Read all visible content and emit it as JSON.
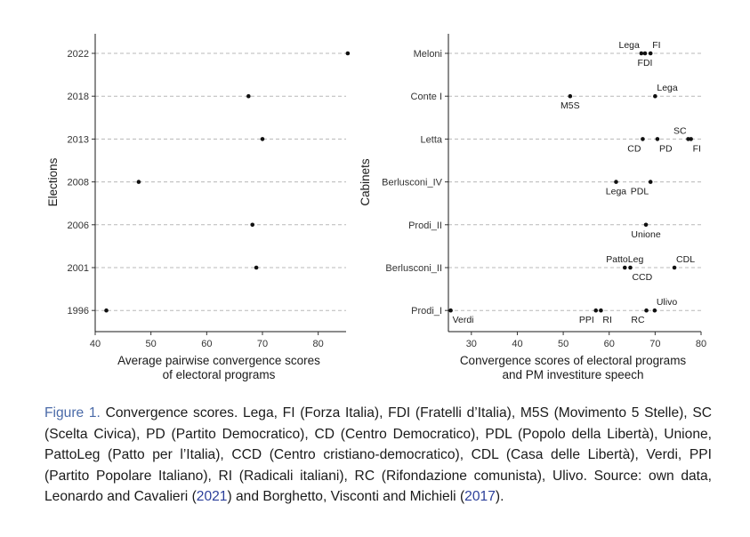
{
  "chart_data": [
    {
      "type": "scatter",
      "panel": "left",
      "ylabel": "Elections",
      "xlabel_lines": [
        "Average pairwise convergence scores",
        "of electoral programs"
      ],
      "categories": [
        "2022",
        "2018",
        "2013",
        "2008",
        "2006",
        "2001",
        "1996"
      ],
      "xlim": [
        40,
        85
      ],
      "xticks": [
        40,
        50,
        60,
        70,
        80
      ],
      "points": [
        {
          "category": "2022",
          "x": 85.3
        },
        {
          "category": "2018",
          "x": 67.5
        },
        {
          "category": "2013",
          "x": 70.0
        },
        {
          "category": "2008",
          "x": 47.8
        },
        {
          "category": "2006",
          "x": 68.2
        },
        {
          "category": "2001",
          "x": 68.9
        },
        {
          "category": "1996",
          "x": 42.0
        }
      ],
      "grid": "horizontal dashed"
    },
    {
      "type": "scatter",
      "panel": "right",
      "ylabel": "Cabinets",
      "xlabel_lines": [
        "Convergence scores of electoral programs",
        "and PM investiture speech"
      ],
      "categories": [
        "Meloni",
        "Conte I",
        "Letta",
        "Berlusconi_IV",
        "Prodi_II",
        "Berlusconi_II",
        "Prodi_I"
      ],
      "xlim": [
        25,
        80
      ],
      "xticks": [
        30,
        40,
        50,
        60,
        70,
        80
      ],
      "points": [
        {
          "category": "Meloni",
          "x": 67.0,
          "label": "Lega",
          "label_pos": "above-left"
        },
        {
          "category": "Meloni",
          "x": 69.0,
          "label": "FI",
          "label_pos": "above-right"
        },
        {
          "category": "Meloni",
          "x": 67.8,
          "label": "FDI",
          "label_pos": "below"
        },
        {
          "category": "Conte I",
          "x": 51.5,
          "label": "M5S",
          "label_pos": "below"
        },
        {
          "category": "Conte I",
          "x": 70.0,
          "label": "Lega",
          "label_pos": "above-right"
        },
        {
          "category": "Letta",
          "x": 67.3,
          "label": "CD",
          "label_pos": "below-left"
        },
        {
          "category": "Letta",
          "x": 70.5,
          "label": "PD",
          "label_pos": "below-right"
        },
        {
          "category": "Letta",
          "x": 77.2,
          "label": "SC",
          "label_pos": "above-left"
        },
        {
          "category": "Letta",
          "x": 77.8,
          "label": "FI",
          "label_pos": "below-right"
        },
        {
          "category": "Berlusconi_IV",
          "x": 61.5,
          "label": "Lega",
          "label_pos": "below"
        },
        {
          "category": "Berlusconi_IV",
          "x": 69.0,
          "label": "PDL",
          "label_pos": "below-left"
        },
        {
          "category": "Prodi_II",
          "x": 68.0,
          "label": "Unione",
          "label_pos": "below"
        },
        {
          "category": "Berlusconi_II",
          "x": 63.4,
          "label": "PattoLeg",
          "label_pos": "above"
        },
        {
          "category": "Berlusconi_II",
          "x": 64.6,
          "label": "CCD",
          "label_pos": "below-right"
        },
        {
          "category": "Berlusconi_II",
          "x": 74.2,
          "label": "CDL",
          "label_pos": "above-right"
        },
        {
          "category": "Prodi_I",
          "x": 25.5,
          "label": "Verdi",
          "label_pos": "below-right"
        },
        {
          "category": "Prodi_I",
          "x": 57.1,
          "label": "PPI",
          "label_pos": "below-left"
        },
        {
          "category": "Prodi_I",
          "x": 58.2,
          "label": "RI",
          "label_pos": "below-right"
        },
        {
          "category": "Prodi_I",
          "x": 68.1,
          "label": "RC",
          "label_pos": "below-left"
        },
        {
          "category": "Prodi_I",
          "x": 69.9,
          "label": "Ulivo",
          "label_pos": "above-right"
        }
      ],
      "grid": "horizontal dashed"
    }
  ],
  "caption": {
    "label": "Figure 1.",
    "text_1": " Convergence scores. Lega, FI (Forza Italia), FDI (Fratelli d’Italia), M5S (Movimento 5 Stelle), SC (Scelta Civica), PD (Partito Democratico), CD (Centro Democratico), PDL (Popolo della Libertà), Unione, PattoLeg (Patto per l’Italia), CCD (Centro cristiano-democratico), CDL (Casa delle Libertà), Verdi, PPI (Partito Popolare Italiano), RI (Radicali italiani), RC (Rifondazione comunista), Ulivo. Source: own data, Leonardo and Cavalieri (",
    "ref_1": "2021",
    "text_2": ") and Borghetto, Visconti and Michieli (",
    "ref_2": "2017",
    "text_3": ")."
  },
  "colors": {
    "point": "#111111",
    "grid": "#b8b8b8",
    "caption_label": "#4a6aa8",
    "reference": "#2b3f9a"
  }
}
